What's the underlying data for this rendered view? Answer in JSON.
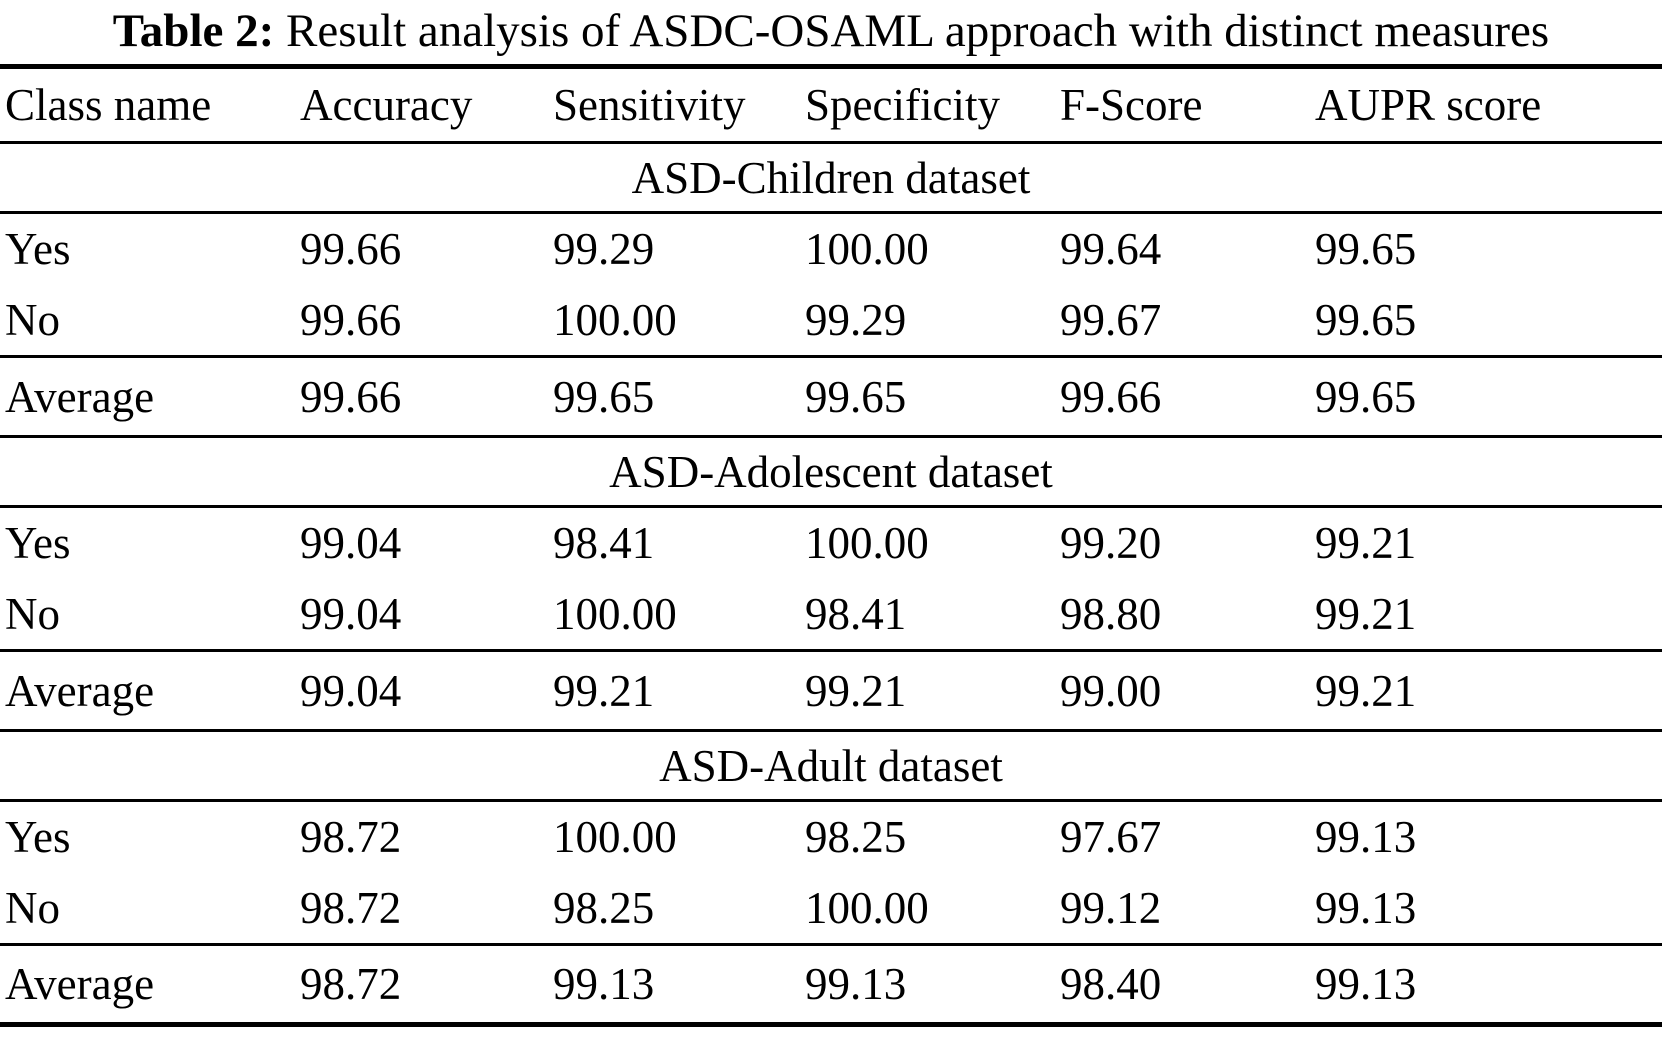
{
  "title": {
    "label": "Table 2:",
    "text": "Result analysis of ASDC-OSAML approach with distinct measures"
  },
  "table": {
    "columns": [
      "Class name",
      "Accuracy",
      "Sensitivity",
      "Specificity",
      "F-Score",
      "AUPR score"
    ],
    "sections": [
      {
        "header": "ASD-Children dataset",
        "rows": [
          {
            "class": "Yes",
            "values": [
              "99.66",
              "99.29",
              "100.00",
              "99.64",
              "99.65"
            ]
          },
          {
            "class": "No",
            "values": [
              "99.66",
              "100.00",
              "99.29",
              "99.67",
              "99.65"
            ]
          }
        ],
        "average": {
          "class": "Average",
          "values": [
            "99.66",
            "99.65",
            "99.65",
            "99.66",
            "99.65"
          ]
        }
      },
      {
        "header": "ASD-Adolescent dataset",
        "rows": [
          {
            "class": "Yes",
            "values": [
              "99.04",
              "98.41",
              "100.00",
              "99.20",
              "99.21"
            ]
          },
          {
            "class": "No",
            "values": [
              "99.04",
              "100.00",
              "98.41",
              "98.80",
              "99.21"
            ]
          }
        ],
        "average": {
          "class": "Average",
          "values": [
            "99.04",
            "99.21",
            "99.21",
            "99.00",
            "99.21"
          ]
        }
      },
      {
        "header": "ASD-Adult dataset",
        "rows": [
          {
            "class": "Yes",
            "values": [
              "98.72",
              "100.00",
              "98.25",
              "97.67",
              "99.13"
            ]
          },
          {
            "class": "No",
            "values": [
              "98.72",
              "98.25",
              "100.00",
              "99.12",
              "99.13"
            ]
          }
        ],
        "average": {
          "class": "Average",
          "values": [
            "98.72",
            "99.13",
            "99.13",
            "98.40",
            "99.13"
          ]
        }
      }
    ]
  }
}
